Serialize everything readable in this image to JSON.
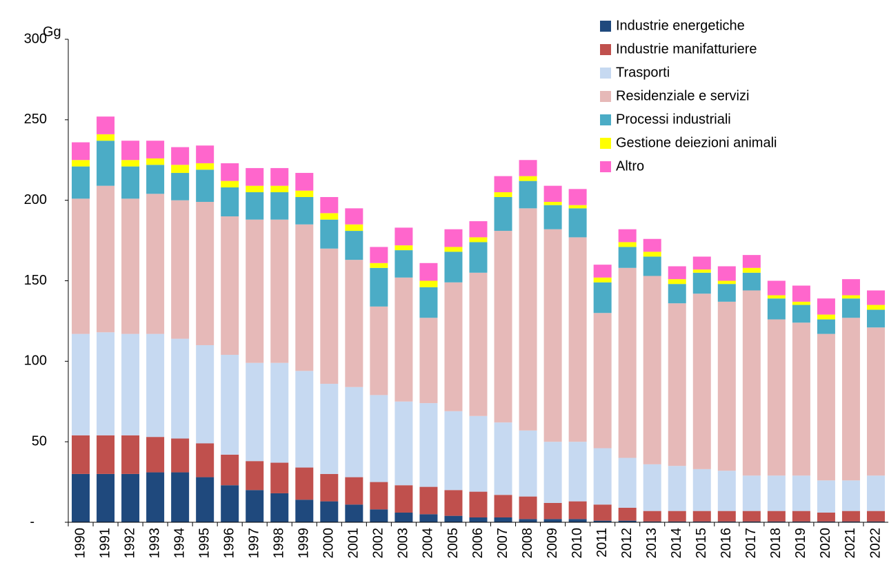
{
  "chart_data": {
    "type": "stacked_bar",
    "y_label": "Gg",
    "categories": [
      "1990",
      "1991",
      "1992",
      "1993",
      "1994",
      "1995",
      "1996",
      "1997",
      "1998",
      "1999",
      "2000",
      "2001",
      "2002",
      "2003",
      "2004",
      "2005",
      "2006",
      "2007",
      "2008",
      "2009",
      "2010",
      "2011",
      "2012",
      "2013",
      "2014",
      "2015",
      "2016",
      "2017",
      "2018",
      "2019",
      "2020",
      "2021",
      "2022"
    ],
    "series": [
      {
        "name": "Industrie energetiche",
        "color": "#1f497d",
        "values": [
          30,
          30,
          30,
          31,
          31,
          28,
          23,
          20,
          18,
          14,
          13,
          11,
          8,
          6,
          5,
          4,
          3,
          3,
          2,
          2,
          2,
          1,
          1,
          0.5,
          0.5,
          0.5,
          0.5,
          0.5,
          0.5,
          0.5,
          0.5,
          0.5,
          0.5
        ]
      },
      {
        "name": "Industrie manifatturiere",
        "color": "#c0504d",
        "values": [
          24,
          24,
          24,
          22,
          21,
          21,
          19,
          18,
          19,
          20,
          17,
          17,
          17,
          17,
          17,
          16,
          16,
          14,
          14,
          10,
          11,
          10,
          8,
          6.5,
          6.5,
          6.5,
          6.5,
          6.5,
          6.5,
          6.5,
          5.5,
          6.5,
          6.5
        ]
      },
      {
        "name": "Trasporti",
        "color": "#c6d9f1",
        "values": [
          63,
          64,
          63,
          64,
          62,
          61,
          62,
          61,
          62,
          60,
          56,
          56,
          54,
          52,
          52,
          49,
          47,
          45,
          41,
          38,
          37,
          35,
          31,
          29,
          28,
          26,
          25,
          22,
          22,
          22,
          20,
          19,
          22
        ]
      },
      {
        "name": "Residenziale e servizi",
        "color": "#e6b9b8",
        "values": [
          84,
          91,
          84,
          87,
          86,
          89,
          86,
          89,
          89,
          91,
          84,
          79,
          55,
          77,
          53,
          80,
          89,
          119,
          138,
          132,
          127,
          84,
          118,
          117,
          101,
          109,
          105,
          115,
          97,
          95,
          91,
          101,
          92
        ]
      },
      {
        "name": "Processi industriali",
        "color": "#4bacc6",
        "values": [
          20,
          28,
          20,
          18,
          17,
          20,
          18,
          17,
          17,
          17,
          18,
          18,
          24,
          17,
          19,
          19,
          19,
          21,
          17,
          15,
          18,
          19,
          13,
          12,
          12,
          13,
          11,
          11,
          13,
          11,
          9,
          12,
          11
        ]
      },
      {
        "name": "Gestione deiezioni animali",
        "color": "#ffff00",
        "values": [
          4,
          4,
          4,
          4,
          5,
          4,
          4,
          4,
          4,
          4,
          4,
          4,
          3,
          3,
          4,
          3,
          3,
          3,
          3,
          2,
          2,
          3,
          3,
          3,
          3,
          2,
          2,
          3,
          2,
          2,
          3,
          2,
          3
        ]
      },
      {
        "name": "Altro",
        "color": "#ff66cc",
        "values": [
          11,
          11,
          12,
          11,
          11,
          11,
          11,
          11,
          11,
          11,
          10,
          10,
          10,
          11,
          11,
          11,
          10,
          10,
          10,
          10,
          10,
          8,
          8,
          8,
          8,
          8,
          9,
          8,
          9,
          10,
          10,
          10,
          9
        ]
      }
    ],
    "ylim": [
      0,
      300
    ],
    "yticks": [
      {
        "value": 0,
        "label": "-"
      },
      50,
      100,
      150,
      200,
      250,
      300
    ],
    "legend": "upper right"
  }
}
